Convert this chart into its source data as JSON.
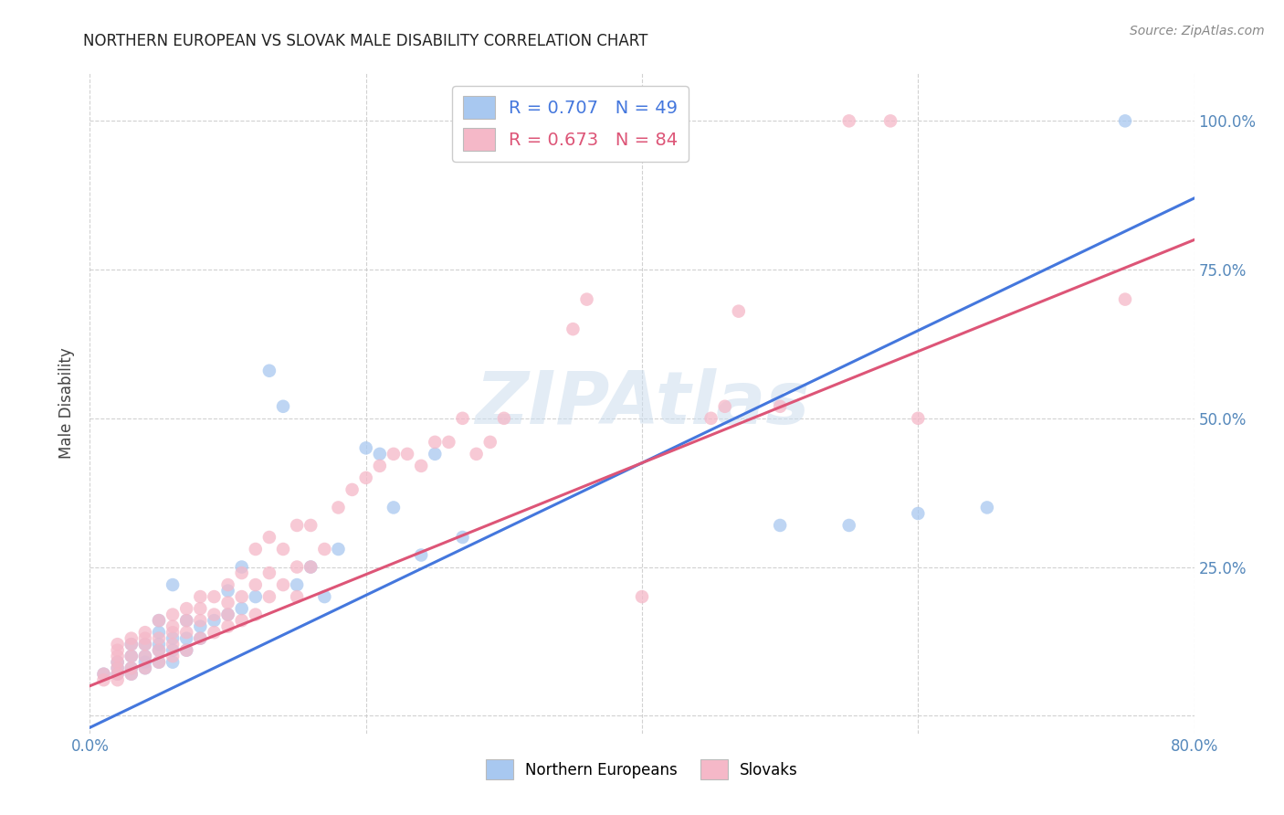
{
  "title": "NORTHERN EUROPEAN VS SLOVAK MALE DISABILITY CORRELATION CHART",
  "source": "Source: ZipAtlas.com",
  "blue_label": "Northern Europeans",
  "pink_label": "Slovaks",
  "blue_color": "#a8c8f0",
  "pink_color": "#f5b8c8",
  "blue_line_color": "#4477dd",
  "pink_line_color": "#dd5577",
  "legend_R_blue": "R = 0.707",
  "legend_N_blue": "N = 49",
  "legend_R_pink": "R = 0.673",
  "legend_N_pink": "N = 84",
  "watermark": "ZIPAtlas",
  "xmin": 0.0,
  "xmax": 0.8,
  "ymin": -0.03,
  "ymax": 1.08,
  "x_ticks": [
    0.0,
    0.2,
    0.4,
    0.6,
    0.8
  ],
  "y_ticks": [
    0.0,
    0.25,
    0.5,
    0.75,
    1.0
  ],
  "x_tick_labels": [
    "0.0%",
    "",
    "",
    "",
    "80.0%"
  ],
  "y_tick_labels_right": [
    "",
    "25.0%",
    "50.0%",
    "75.0%",
    "100.0%"
  ],
  "blue_line_x0": 0.0,
  "blue_line_y0": -0.02,
  "blue_line_x1": 0.8,
  "blue_line_y1": 0.87,
  "pink_line_x0": 0.0,
  "pink_line_y0": 0.05,
  "pink_line_x1": 0.8,
  "pink_line_y1": 0.8,
  "blue_scatter_x": [
    0.01,
    0.02,
    0.02,
    0.02,
    0.03,
    0.03,
    0.03,
    0.03,
    0.04,
    0.04,
    0.04,
    0.04,
    0.05,
    0.05,
    0.05,
    0.05,
    0.05,
    0.06,
    0.06,
    0.06,
    0.06,
    0.07,
    0.07,
    0.07,
    0.08,
    0.08,
    0.09,
    0.1,
    0.1,
    0.11,
    0.11,
    0.12,
    0.13,
    0.14,
    0.15,
    0.16,
    0.17,
    0.18,
    0.2,
    0.21,
    0.22,
    0.24,
    0.25,
    0.27,
    0.5,
    0.55,
    0.6,
    0.65,
    0.75
  ],
  "blue_scatter_y": [
    0.07,
    0.07,
    0.08,
    0.09,
    0.07,
    0.08,
    0.1,
    0.12,
    0.08,
    0.09,
    0.1,
    0.12,
    0.09,
    0.11,
    0.12,
    0.14,
    0.16,
    0.09,
    0.11,
    0.13,
    0.22,
    0.11,
    0.13,
    0.16,
    0.13,
    0.15,
    0.16,
    0.17,
    0.21,
    0.18,
    0.25,
    0.2,
    0.58,
    0.52,
    0.22,
    0.25,
    0.2,
    0.28,
    0.45,
    0.44,
    0.35,
    0.27,
    0.44,
    0.3,
    0.32,
    0.32,
    0.34,
    0.35,
    1.0
  ],
  "pink_scatter_x": [
    0.01,
    0.01,
    0.02,
    0.02,
    0.02,
    0.02,
    0.02,
    0.02,
    0.02,
    0.03,
    0.03,
    0.03,
    0.03,
    0.03,
    0.04,
    0.04,
    0.04,
    0.04,
    0.04,
    0.05,
    0.05,
    0.05,
    0.05,
    0.06,
    0.06,
    0.06,
    0.06,
    0.06,
    0.07,
    0.07,
    0.07,
    0.07,
    0.08,
    0.08,
    0.08,
    0.08,
    0.09,
    0.09,
    0.09,
    0.1,
    0.1,
    0.1,
    0.1,
    0.11,
    0.11,
    0.11,
    0.12,
    0.12,
    0.12,
    0.13,
    0.13,
    0.13,
    0.14,
    0.14,
    0.15,
    0.15,
    0.15,
    0.16,
    0.16,
    0.17,
    0.18,
    0.19,
    0.2,
    0.21,
    0.22,
    0.23,
    0.24,
    0.25,
    0.26,
    0.27,
    0.28,
    0.29,
    0.3,
    0.35,
    0.36,
    0.4,
    0.45,
    0.46,
    0.47,
    0.5,
    0.55,
    0.58,
    0.6,
    0.75
  ],
  "pink_scatter_y": [
    0.06,
    0.07,
    0.06,
    0.07,
    0.08,
    0.09,
    0.1,
    0.11,
    0.12,
    0.07,
    0.08,
    0.1,
    0.12,
    0.13,
    0.08,
    0.1,
    0.12,
    0.13,
    0.14,
    0.09,
    0.11,
    0.13,
    0.16,
    0.1,
    0.12,
    0.14,
    0.15,
    0.17,
    0.11,
    0.14,
    0.16,
    0.18,
    0.13,
    0.16,
    0.18,
    0.2,
    0.14,
    0.17,
    0.2,
    0.15,
    0.17,
    0.19,
    0.22,
    0.16,
    0.2,
    0.24,
    0.17,
    0.22,
    0.28,
    0.2,
    0.24,
    0.3,
    0.22,
    0.28,
    0.2,
    0.25,
    0.32,
    0.25,
    0.32,
    0.28,
    0.35,
    0.38,
    0.4,
    0.42,
    0.44,
    0.44,
    0.42,
    0.46,
    0.46,
    0.5,
    0.44,
    0.46,
    0.5,
    0.65,
    0.7,
    0.2,
    0.5,
    0.52,
    0.68,
    0.52,
    1.0,
    1.0,
    0.5,
    0.7
  ]
}
